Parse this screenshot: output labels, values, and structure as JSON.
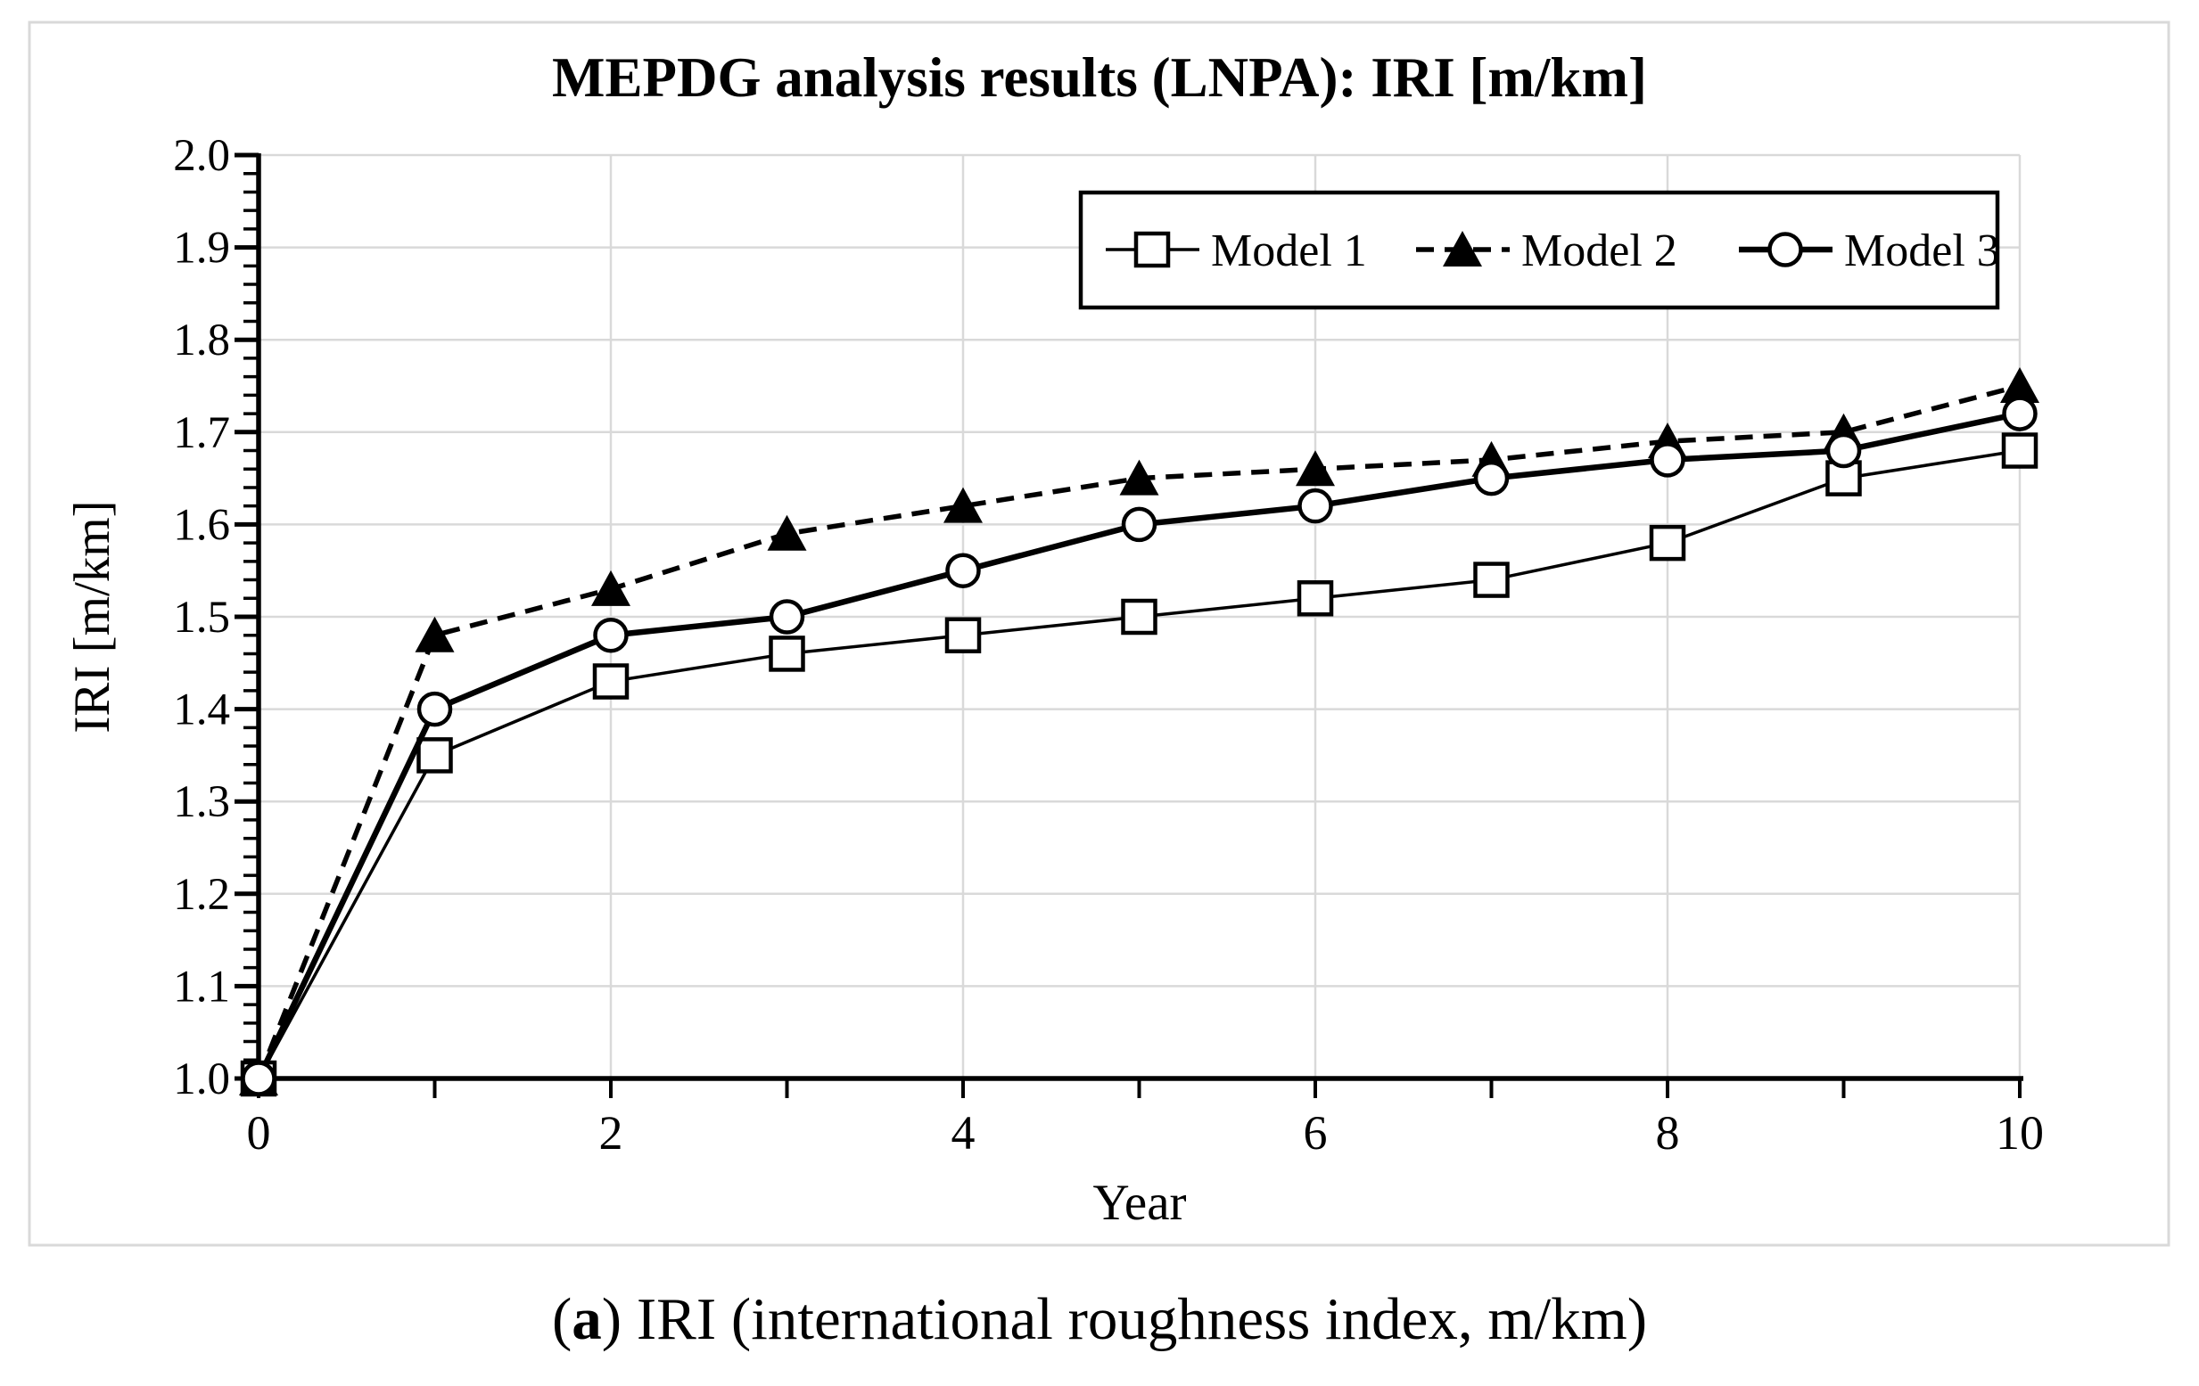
{
  "figure": {
    "caption": {
      "prefix": "(",
      "bold": "a",
      "rest": ") IRI (international roughness index, m/km)"
    }
  },
  "chart_data": {
    "type": "line",
    "title": "MEPDG analysis results (LNPA): IRI [m/km]",
    "xlabel": "Year",
    "ylabel": "IRI [m/km]",
    "xlim": [
      0,
      10
    ],
    "ylim": [
      1.0,
      2.0
    ],
    "x": [
      0,
      1,
      2,
      3,
      4,
      5,
      6,
      7,
      8,
      9,
      10
    ],
    "series": [
      {
        "name": "Model 1",
        "marker": "square",
        "marker_fill": "open",
        "line": "solid-thin",
        "values": [
          1.0,
          1.35,
          1.43,
          1.46,
          1.48,
          1.5,
          1.52,
          1.54,
          1.58,
          1.65,
          1.68
        ]
      },
      {
        "name": "Model 2",
        "marker": "triangle",
        "marker_fill": "solid",
        "line": "dashed",
        "values": [
          1.0,
          1.48,
          1.53,
          1.59,
          1.62,
          1.65,
          1.66,
          1.67,
          1.69,
          1.7,
          1.75
        ]
      },
      {
        "name": "Model 3",
        "marker": "circle",
        "marker_fill": "open",
        "line": "solid-thick",
        "values": [
          1.0,
          1.4,
          1.48,
          1.5,
          1.55,
          1.6,
          1.62,
          1.65,
          1.67,
          1.68,
          1.72
        ]
      }
    ],
    "x_ticks": [
      {
        "value": 0,
        "label": "0"
      },
      {
        "value": 2,
        "label": "2"
      },
      {
        "value": 4,
        "label": "4"
      },
      {
        "value": 6,
        "label": "6"
      },
      {
        "value": 8,
        "label": "8"
      },
      {
        "value": 10,
        "label": "10"
      }
    ],
    "y_ticks": [
      {
        "value": 1.0,
        "label": "1.0"
      },
      {
        "value": 1.1,
        "label": "1.1"
      },
      {
        "value": 1.2,
        "label": "1.2"
      },
      {
        "value": 1.3,
        "label": "1.3"
      },
      {
        "value": 1.4,
        "label": "1.4"
      },
      {
        "value": 1.5,
        "label": "1.5"
      },
      {
        "value": 1.6,
        "label": "1.6"
      },
      {
        "value": 1.7,
        "label": "1.7"
      },
      {
        "value": 1.8,
        "label": "1.8"
      },
      {
        "value": 1.9,
        "label": "1.9"
      },
      {
        "value": 2.0,
        "label": "2.0"
      }
    ],
    "x_minor_tick_step": 1,
    "y_minor_tick_step": 0.02,
    "grid": {
      "horizontal_at": [
        1.1,
        1.2,
        1.3,
        1.4,
        1.5,
        1.6,
        1.7,
        1.8,
        1.9,
        2.0
      ],
      "vertical_at": [
        2,
        4,
        6,
        8,
        10
      ],
      "color": "#d9d9d9"
    },
    "legend": {
      "position": "top-right",
      "entries": [
        "Model 1",
        "Model 2",
        "Model 3"
      ]
    },
    "colors": {
      "series": "#000000",
      "grid": "#d9d9d9",
      "background": "#ffffff",
      "frame_border": "#d9d9d9"
    }
  }
}
